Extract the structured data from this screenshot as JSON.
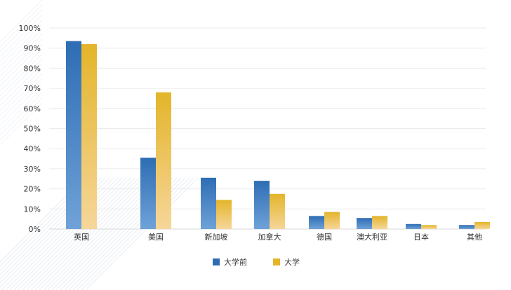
{
  "chart_data": {
    "type": "bar",
    "title": "",
    "xlabel": "",
    "ylabel": "",
    "ylim": [
      0,
      100
    ],
    "yticks": [
      0,
      10,
      20,
      30,
      40,
      50,
      60,
      70,
      80,
      90,
      100
    ],
    "ytick_labels": [
      "0%",
      "10%",
      "20%",
      "30%",
      "40%",
      "50%",
      "60%",
      "70%",
      "80%",
      "90%",
      "100%"
    ],
    "grid": true,
    "legend_position": "bottom",
    "categories": [
      "英国",
      "美国",
      "新加坡",
      "加拿大",
      "德国",
      "澳大利亚",
      "日本",
      "其他"
    ],
    "series": [
      {
        "name": "大学前",
        "values": [
          93.5,
          35.5,
          25.5,
          24,
          6.5,
          5.5,
          2.5,
          2
        ],
        "color": "#2e6db4",
        "color_light": "#6fa2d8"
      },
      {
        "name": "大学",
        "values": [
          92,
          68,
          14.5,
          17.5,
          8.5,
          6.5,
          2,
          3.5
        ],
        "color": "#e3b52a",
        "color_light": "#f6d69a"
      }
    ]
  }
}
